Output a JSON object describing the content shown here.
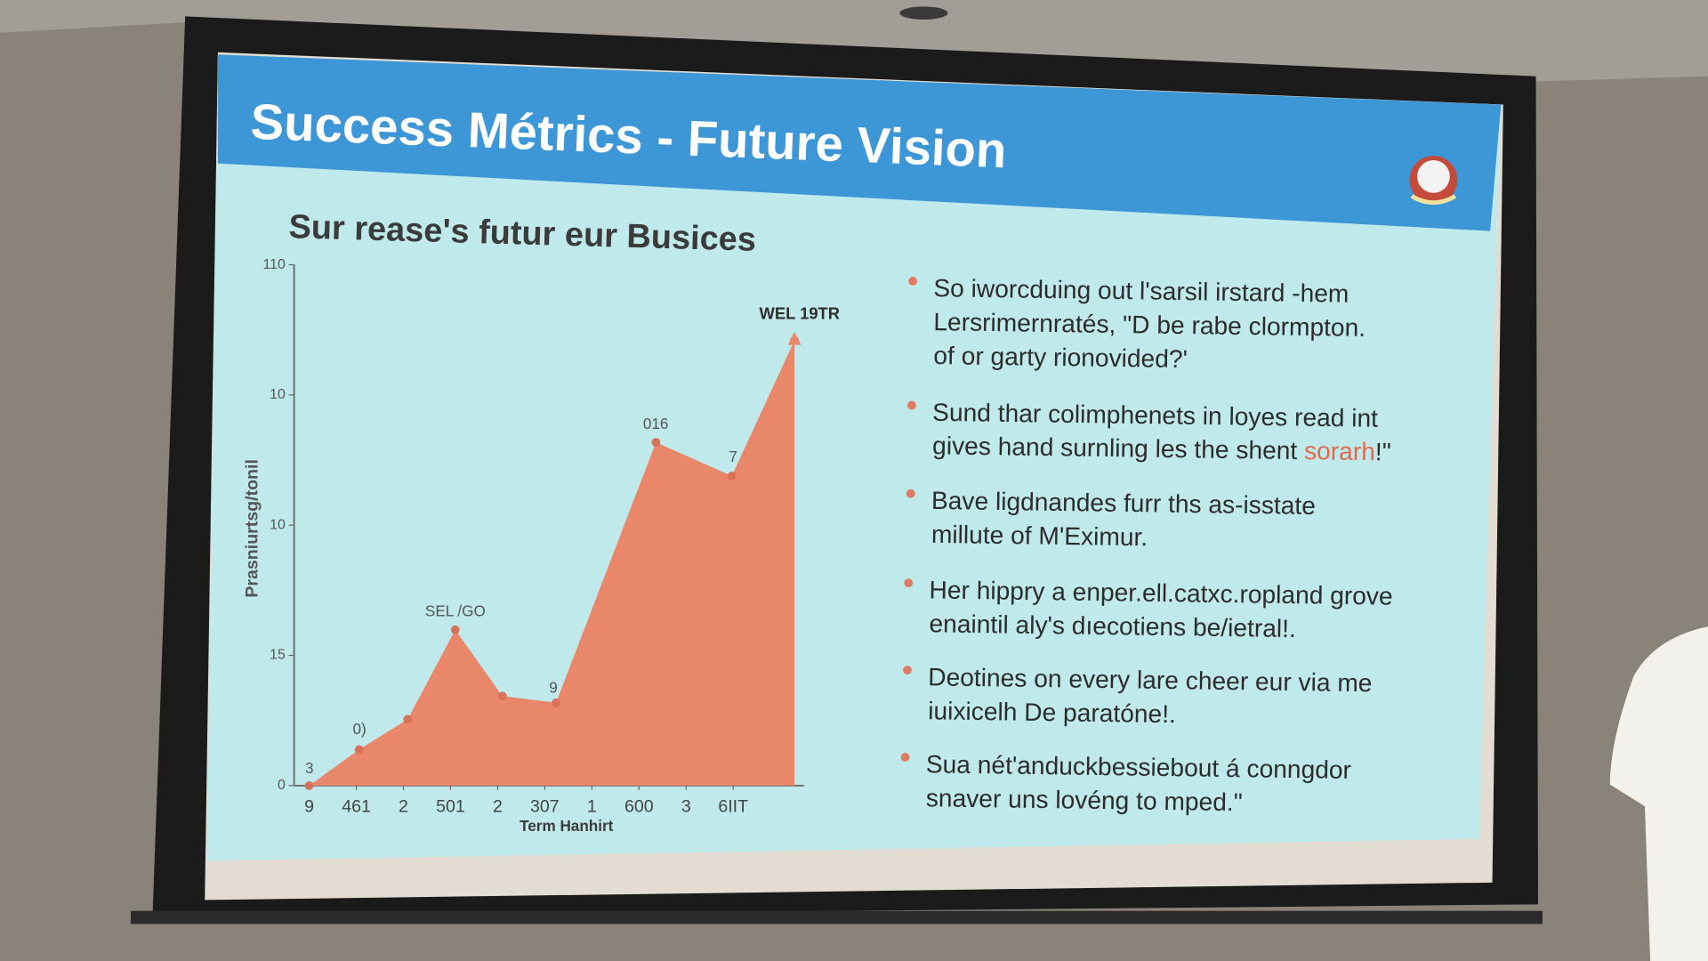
{
  "slide": {
    "title": "Success Métrics - Future Vision",
    "bullets": [
      [
        "So iworcduing out l'sarsil irstard -hem",
        "Lersrimernratés, \"D be rabe clormpton.",
        "of or garty rionovided?'"
      ],
      [
        "Sund thar colimphenets in loyes read int",
        [
          "gives hand surnling les the shent ",
          "sorarh",
          "!\""
        ]
      ],
      [
        "Bave ligdnandes furr ths as-isstate",
        "millute of M'Eximur."
      ],
      [
        "Her hippry a enper.ell.catxc.ropland grove",
        "enaintil aly's dıecotiens be/ietral!."
      ],
      [
        "Deotines on every lare cheer eur via me",
        "iuixicelh De paratóne!."
      ],
      [
        "Sua nét'anduckbessiebout á conngdor",
        "snaver uns lovéng to mped.\""
      ]
    ]
  },
  "chart_data": {
    "type": "area",
    "title": "Sur rease's futur eur Busices",
    "x_label": "Term Hanhirt",
    "y_label": "Prasniurtsg/tonil",
    "color": "#e8876a",
    "xlim": [
      -0.32,
      10.5
    ],
    "xticks": [
      {
        "value": 0,
        "label": "9"
      },
      {
        "value": 1,
        "label": "461"
      },
      2,
      {
        "value": 3,
        "label": "501"
      },
      {
        "value": 4,
        "label": "2"
      },
      {
        "value": 5,
        "label": "307"
      },
      {
        "value": 6,
        "label": "1"
      },
      {
        "value": 7,
        "label": "600"
      },
      {
        "value": 8,
        "label": "3"
      },
      {
        "value": 9,
        "label": "6IIT"
      }
    ],
    "ylim": [
      0,
      110
    ],
    "yticks": [
      0,
      {
        "value": 27.5,
        "label": "15"
      },
      {
        "value": 55,
        "label": "10"
      },
      {
        "value": 82.5,
        "label": "10"
      },
      110
    ],
    "x": [
      0,
      1.06,
      2.09,
      3.1,
      4.1,
      5.24,
      7.36,
      8.97,
      10.3
    ],
    "values": [
      0,
      7.6,
      14,
      32.9,
      18.9,
      17.5,
      72.5,
      65.4,
      94
    ],
    "annotations": [
      "3",
      "0)",
      "SEL /GO",
      "9",
      "016",
      "7",
      "WEL 19TR"
    ]
  }
}
